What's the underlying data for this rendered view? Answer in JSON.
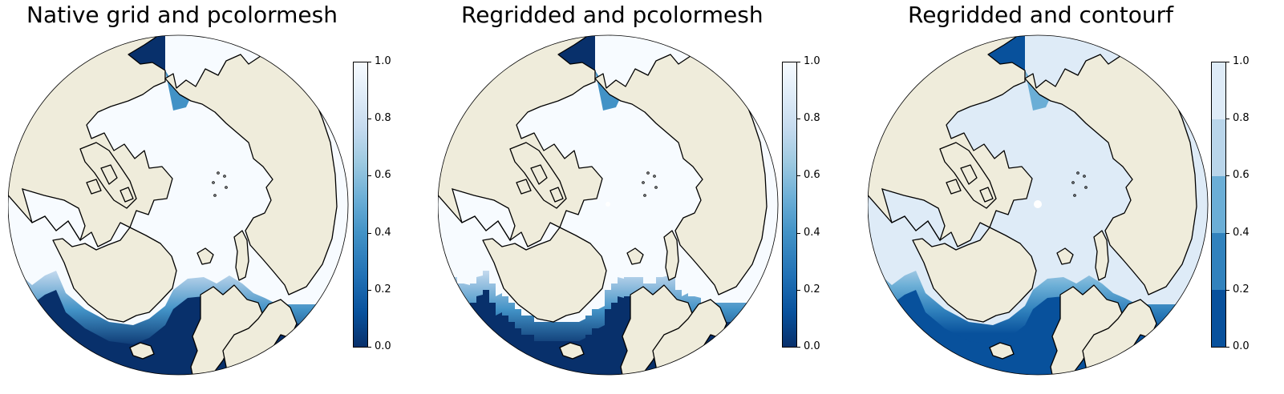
{
  "colors": {
    "land": "#efecdb",
    "ocean_open": "#08306b",
    "ocean_open_contourf": "#08519c",
    "ice": "#f7fbff",
    "ice_contourf": "#deebf7",
    "coast": "#000000"
  },
  "colormap": "Blues_r",
  "colorbar_ticks": [
    "0.0",
    "0.2",
    "0.4",
    "0.6",
    "0.8",
    "1.0"
  ],
  "panels": [
    {
      "title": "Native grid and pcolormesh",
      "style": "smooth"
    },
    {
      "title": "Regridded and pcolormesh",
      "style": "blocky"
    },
    {
      "title": "Regridded and contourf",
      "style": "stepped",
      "levels": [
        "#08519c",
        "#3182bd",
        "#6baed6",
        "#b9d5ea",
        "#deebf7"
      ]
    }
  ]
}
